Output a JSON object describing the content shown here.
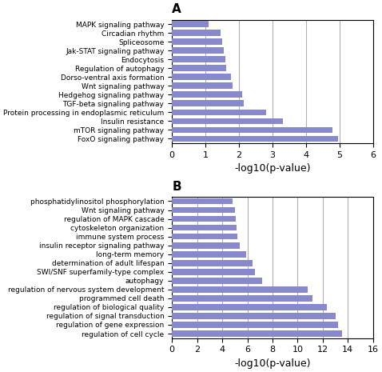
{
  "chart_data": [
    {
      "type": "bar",
      "orientation": "horizontal",
      "title": "A",
      "categories": [
        "MAPK signaling pathway",
        "Circadian rhythm",
        "Spliceosome",
        "Jak-STAT signaling pathway",
        "Endocytosis",
        "Regulation of autophagy",
        "Dorso-ventral axis formation",
        "Wnt signaling pathway",
        "Hedgehog signaling pathway",
        "TGF-beta signaling pathway",
        "Protein processing in endoplasmic reticulum",
        "Insulin resistance",
        "mTOR signaling pathway",
        "FoxO signaling pathway"
      ],
      "values": [
        1.1,
        1.45,
        1.5,
        1.55,
        1.6,
        1.62,
        1.75,
        1.82,
        2.1,
        2.15,
        2.8,
        3.3,
        4.8,
        4.95
      ],
      "color": "#8888cc",
      "x_label": "-log10(p-value)",
      "xlim": [
        0,
        6
      ],
      "xticks": [
        0,
        1,
        2,
        3,
        4,
        5,
        6
      ],
      "grid": true
    },
    {
      "type": "bar",
      "orientation": "horizontal",
      "title": "B",
      "categories": [
        "phosphatidylinositol phosphorylation",
        "Wnt signaling pathway",
        "regulation of MAPK cascade",
        "cytoskeleton organization",
        "immune system process",
        "insulin receptor signaling pathway",
        "long-term memory",
        "determination of adult lifespan",
        "SWI/SNF superfamily-type complex",
        "autophagy",
        "regulation of nervous system development",
        "programmed cell death",
        "regulation of biological quality",
        "regulation of signal transduction",
        "regulation of gene expression",
        "regulation of cell cycle"
      ],
      "values": [
        4.8,
        5.0,
        5.1,
        5.15,
        5.2,
        5.4,
        5.9,
        6.4,
        6.6,
        7.2,
        10.8,
        11.2,
        12.3,
        13.0,
        13.2,
        13.5
      ],
      "color": "#8888cc",
      "x_label": "-log10(p-value)",
      "xlim": [
        0,
        16
      ],
      "xticks": [
        0,
        2,
        4,
        6,
        8,
        10,
        12,
        14,
        16
      ],
      "grid": true
    }
  ]
}
